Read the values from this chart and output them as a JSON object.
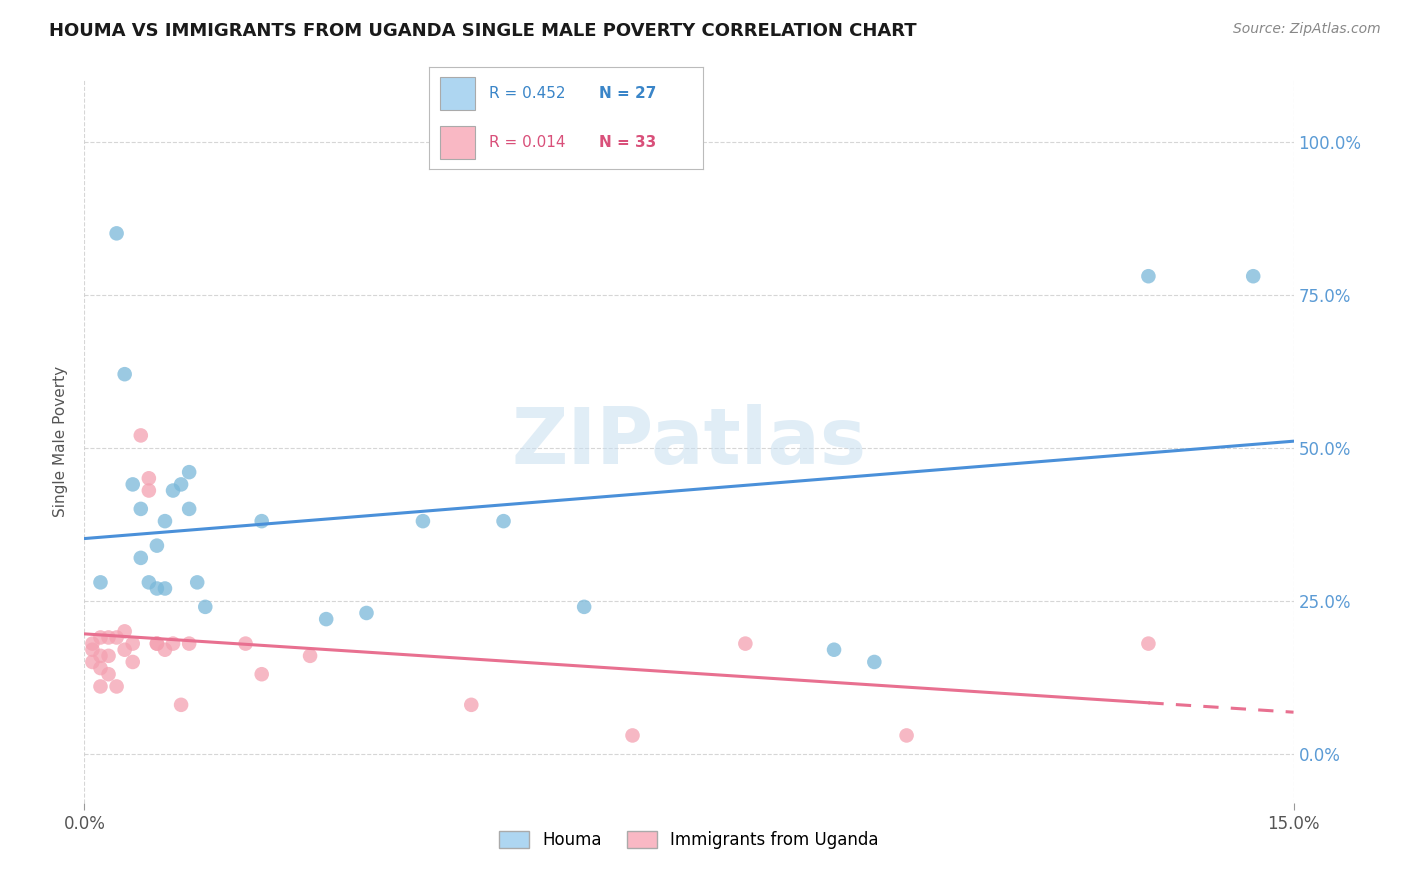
{
  "title": "HOUMA VS IMMIGRANTS FROM UGANDA SINGLE MALE POVERTY CORRELATION CHART",
  "source": "Source: ZipAtlas.com",
  "ylabel": "Single Male Poverty",
  "xmin": 0.0,
  "xmax": 0.15,
  "ymin": -0.08,
  "ymax": 1.1,
  "ytick_vals": [
    0.0,
    0.25,
    0.5,
    0.75,
    1.0
  ],
  "right_ytick_labels": [
    "0.0%",
    "25.0%",
    "50.0%",
    "75.0%",
    "100.0%"
  ],
  "houma_color": "#7ab8d9",
  "immigrants_color": "#f4a0b0",
  "legend_box_color_houma": "#aed6f1",
  "legend_box_color_immigrants": "#f9b8c4",
  "blue_line_color": "#4a90d9",
  "pink_line_color": "#e87090",
  "watermark": "ZIPatlas",
  "legend_r1": "R = 0.452",
  "legend_n1": "N = 27",
  "legend_r2": "R = 0.014",
  "legend_n2": "N = 33",
  "houma_x": [
    0.002,
    0.004,
    0.005,
    0.006,
    0.007,
    0.007,
    0.008,
    0.009,
    0.009,
    0.01,
    0.01,
    0.011,
    0.012,
    0.013,
    0.013,
    0.014,
    0.015,
    0.022,
    0.03,
    0.035,
    0.042,
    0.052,
    0.062,
    0.093,
    0.098,
    0.132,
    0.145
  ],
  "houma_y": [
    0.28,
    0.85,
    0.62,
    0.44,
    0.4,
    0.32,
    0.28,
    0.27,
    0.34,
    0.27,
    0.38,
    0.43,
    0.44,
    0.46,
    0.4,
    0.28,
    0.24,
    0.38,
    0.22,
    0.23,
    0.38,
    0.38,
    0.24,
    0.17,
    0.15,
    0.78,
    0.78
  ],
  "immigrants_x": [
    0.001,
    0.001,
    0.001,
    0.002,
    0.002,
    0.002,
    0.002,
    0.003,
    0.003,
    0.003,
    0.004,
    0.004,
    0.005,
    0.005,
    0.006,
    0.006,
    0.007,
    0.008,
    0.008,
    0.009,
    0.009,
    0.01,
    0.011,
    0.012,
    0.013,
    0.02,
    0.022,
    0.028,
    0.048,
    0.068,
    0.082,
    0.102,
    0.132
  ],
  "immigrants_y": [
    0.18,
    0.17,
    0.15,
    0.19,
    0.16,
    0.14,
    0.11,
    0.19,
    0.16,
    0.13,
    0.19,
    0.11,
    0.2,
    0.17,
    0.18,
    0.15,
    0.52,
    0.45,
    0.43,
    0.18,
    0.18,
    0.17,
    0.18,
    0.08,
    0.18,
    0.18,
    0.13,
    0.16,
    0.08,
    0.03,
    0.18,
    0.03,
    0.18
  ],
  "background_color": "#ffffff",
  "grid_color": "#cccccc"
}
